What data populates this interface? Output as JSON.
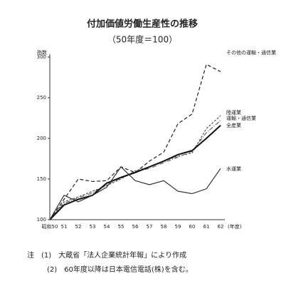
{
  "chart_data": {
    "type": "line",
    "title": "付加価値労働生産性の推移",
    "subtitle": "（50年度＝100）",
    "y_label": "指数",
    "x_label": "(年度)",
    "categories": [
      "昭和50",
      "51",
      "52",
      "53",
      "54",
      "55",
      "56",
      "57",
      "58",
      "59",
      "60",
      "61",
      "62"
    ],
    "ylim": [
      100,
      300
    ],
    "yticks": [
      100,
      150,
      200,
      250,
      300
    ],
    "series": [
      {
        "name": "その他の運輸・通信業",
        "color": "#222",
        "dash": "5,3",
        "values": [
          100,
          125,
          150,
          147,
          148,
          165,
          158,
          172,
          183,
          218,
          230,
          291,
          282
        ]
      },
      {
        "name": "陸運業",
        "color": "#555",
        "dash": "3,2",
        "values": [
          100,
          122,
          128,
          135,
          142,
          150,
          160,
          165,
          172,
          178,
          182,
          212,
          228
        ]
      },
      {
        "name": "運輸・通信業",
        "color": "#666",
        "dash": "6,2,1,2",
        "values": [
          100,
          120,
          127,
          133,
          143,
          151,
          159,
          163,
          170,
          177,
          184,
          207,
          222
        ]
      },
      {
        "name": "全産業",
        "color": "#111",
        "dash": "",
        "width": 2,
        "values": [
          100,
          118,
          125,
          130,
          145,
          152,
          158,
          165,
          172,
          180,
          185,
          200,
          216
        ]
      },
      {
        "name": "水運業",
        "color": "#333",
        "dash": "",
        "values": [
          100,
          130,
          122,
          130,
          140,
          165,
          148,
          143,
          148,
          135,
          132,
          138,
          163
        ]
      }
    ],
    "notes": [
      "注　(1)　大蔵省「法人企業統計年報」により作成",
      "(2)　60年度以降は日本電信電話(株)を含む。"
    ]
  }
}
